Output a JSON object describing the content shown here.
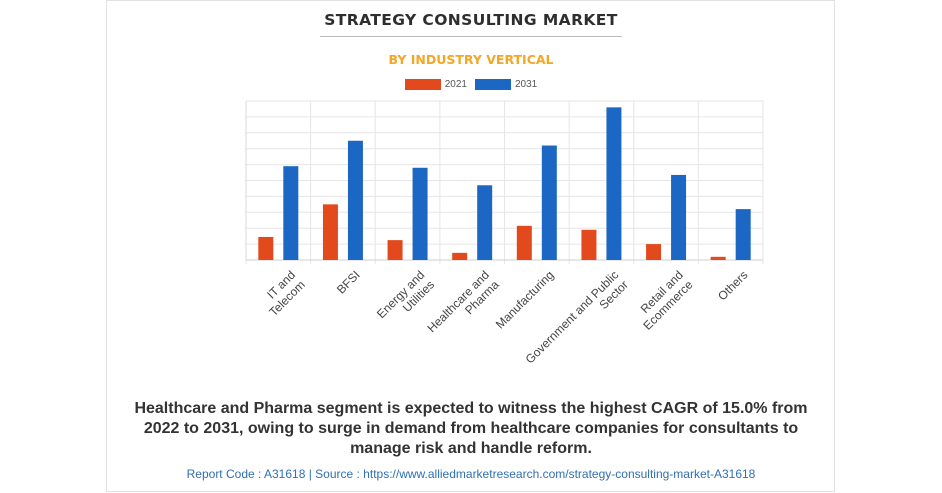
{
  "header": {
    "title": "STRATEGY CONSULTING MARKET",
    "subtitle": "BY INDUSTRY VERTICAL"
  },
  "colors": {
    "series_2021": "#e2491d",
    "series_2031": "#1c67c4",
    "subtitle": "#f5a623"
  },
  "chart_data": {
    "type": "bar",
    "categories": [
      "IT and Telecom",
      "BFSI",
      "Energy and Utilities",
      "Healthcare and Pharma",
      "Manufacturing",
      "Government and Public Sector",
      "Retail and Ecommerce",
      "Others"
    ],
    "series": [
      {
        "name": "2021",
        "values": [
          14.5,
          35,
          12.5,
          4.5,
          21.5,
          19,
          10,
          2
        ]
      },
      {
        "name": "2031",
        "values": [
          59,
          75,
          58,
          47,
          72,
          96,
          53.5,
          32
        ]
      }
    ],
    "ylim": [
      0,
      100
    ],
    "grid": true,
    "legend_position": "top-center",
    "xlabel": "",
    "ylabel": "",
    "tick_labels_shown": false
  },
  "footnote": "Healthcare and Pharma segment is expected to witness the highest CAGR of 15.0% from 2022 to 2031, owing to surge in demand from healthcare companies for consultants to manage risk and handle reform.",
  "source_line": "Report Code : A31618  |  Source : https://www.alliedmarketresearch.com/strategy-consulting-market-A31618"
}
